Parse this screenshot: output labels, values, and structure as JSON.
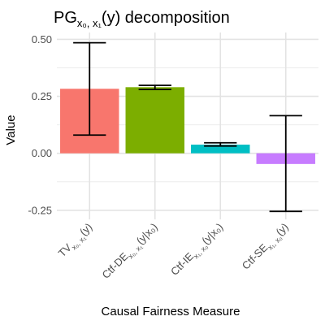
{
  "chart_data": {
    "type": "bar",
    "title": {
      "base": "PG",
      "sub": "x₀, x₁",
      "rest": "(y) decomposition"
    },
    "xlabel": "Causal Fairness Measure",
    "ylabel": "Value",
    "ylim": [
      -0.29,
      0.53
    ],
    "yticks": [
      -0.25,
      0.0,
      0.25,
      0.5
    ],
    "ytick_labels": [
      "-0.25",
      "0.00",
      "0.25",
      "0.50"
    ],
    "grid": true,
    "categories": [
      {
        "base": "TV",
        "sub": "x₀, x₁",
        "rest": "(y)"
      },
      {
        "base": "Ctf-DE",
        "sub": "x₀, x₁",
        "rest": "(y|x₀)"
      },
      {
        "base": "Ctf-IE",
        "sub": "x₁, x₀",
        "rest": "(y|x₀)"
      },
      {
        "base": "Ctf-SE",
        "sub": "x₁, x₀",
        "rest": "(y)"
      }
    ],
    "values": [
      0.283,
      0.29,
      0.038,
      -0.047
    ],
    "error_low": [
      0.08,
      0.28,
      0.032,
      -0.255
    ],
    "error_high": [
      0.485,
      0.298,
      0.046,
      0.165
    ],
    "colors": [
      "#F8766D",
      "#7CAE00",
      "#00BFC4",
      "#C77CFF"
    ]
  }
}
